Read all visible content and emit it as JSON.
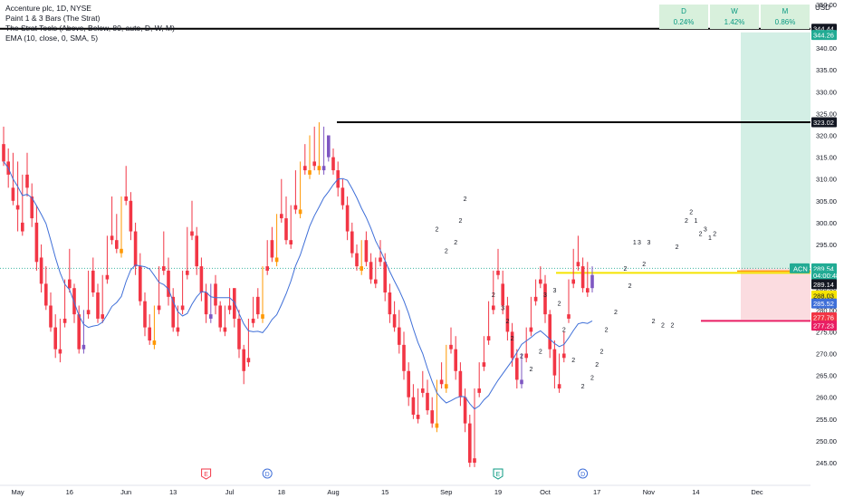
{
  "legend": {
    "title": "Accenture plc, 1D, NYSE",
    "indicators": [
      "Paint 1 & 3 Bars (The Strat)",
      "The Strat Tools (Above, Below, 80, auto, D, W, M)",
      "EMA (10, close, 0, SMA, 5)"
    ]
  },
  "performance": [
    {
      "label": "D",
      "value": "0.24%"
    },
    {
      "label": "W",
      "value": "1.42%"
    },
    {
      "label": "M",
      "value": "0.86%"
    }
  ],
  "currency": "USD",
  "colors": {
    "up": "#089981",
    "down": "#f23645",
    "inside": "#7e57c2",
    "outside": "#ff9800",
    "ema": "#3f6fd8",
    "level": "#000000",
    "yellow": "#f5e400",
    "magenta": "#e91e63",
    "target_zone": "#d3efe5",
    "stop_zone": "#fbdce0"
  },
  "chart_data": {
    "type": "candlestick",
    "symbol": "ACN",
    "timeframe": "1D",
    "ylim": [
      242,
      352
    ],
    "y_ticks": [
      245,
      250,
      255,
      260,
      265,
      270,
      275,
      280,
      285,
      290,
      295,
      300,
      305,
      310,
      315,
      320,
      325,
      330,
      335,
      340,
      345,
      350
    ],
    "x_ticks": [
      {
        "label": "May",
        "i": 3
      },
      {
        "label": "16",
        "i": 14
      },
      {
        "label": "Jun",
        "i": 26
      },
      {
        "label": "13",
        "i": 36
      },
      {
        "label": "Jul",
        "i": 48
      },
      {
        "label": "18",
        "i": 59
      },
      {
        "label": "Aug",
        "i": 70
      },
      {
        "label": "15",
        "i": 81
      },
      {
        "label": "Sep",
        "i": 94
      },
      {
        "label": "19",
        "i": 105
      },
      {
        "label": "Oct",
        "i": 115
      },
      {
        "label": "17",
        "i": 126
      },
      {
        "label": "Nov",
        "i": 137
      },
      {
        "label": "14",
        "i": 147
      },
      {
        "label": "Dec",
        "i": 160
      }
    ],
    "candles": [
      [
        318,
        322,
        314,
        313
      ],
      [
        314,
        317,
        311,
        308
      ],
      [
        308,
        316,
        305,
        304
      ],
      [
        304,
        314,
        303,
        298
      ],
      [
        300,
        311,
        298,
        297
      ],
      [
        311,
        316,
        308,
        306
      ],
      [
        306,
        309,
        301,
        299
      ],
      [
        300,
        304,
        291,
        289
      ],
      [
        292,
        295,
        286,
        284
      ],
      [
        286,
        290,
        281,
        280
      ],
      [
        281,
        284,
        276,
        275
      ],
      [
        276,
        279,
        271,
        269
      ],
      [
        271,
        278,
        270,
        268
      ],
      [
        278,
        287,
        277,
        276
      ],
      [
        287,
        294,
        285,
        284
      ],
      [
        285,
        286,
        279,
        277
      ],
      [
        279,
        281,
        271,
        270
      ],
      [
        272,
        280,
        271,
        270
      ],
      [
        280,
        289,
        279,
        278
      ],
      [
        289,
        292,
        284,
        283
      ],
      [
        284,
        286,
        278,
        277
      ],
      [
        279,
        288,
        278,
        277
      ],
      [
        288,
        297,
        287,
        286
      ],
      [
        297,
        306,
        296,
        295
      ],
      [
        296,
        302,
        294,
        293
      ],
      [
        294,
        306,
        293,
        292
      ],
      [
        306,
        313,
        305,
        304
      ],
      [
        305,
        307,
        298,
        296
      ],
      [
        298,
        300,
        290,
        288
      ],
      [
        290,
        293,
        282,
        281
      ],
      [
        282,
        284,
        276,
        274
      ],
      [
        276,
        279,
        273,
        272
      ],
      [
        273,
        281,
        272,
        271
      ],
      [
        281,
        290,
        280,
        279
      ],
      [
        290,
        298,
        289,
        288
      ],
      [
        289,
        292,
        283,
        281
      ],
      [
        283,
        285,
        276,
        275
      ],
      [
        276,
        281,
        275,
        274
      ],
      [
        281,
        289,
        280,
        279
      ],
      [
        289,
        299,
        288,
        287
      ],
      [
        298,
        305,
        297,
        296
      ],
      [
        297,
        299,
        290,
        288
      ],
      [
        290,
        292,
        284,
        282
      ],
      [
        284,
        286,
        279,
        277
      ],
      [
        279,
        286,
        278,
        277
      ],
      [
        286,
        288,
        281,
        279
      ],
      [
        281,
        282,
        276,
        275
      ],
      [
        276,
        281,
        275,
        274
      ],
      [
        281,
        285,
        280,
        279
      ],
      [
        285,
        283,
        278,
        276
      ],
      [
        278,
        280,
        271,
        269
      ],
      [
        271,
        272,
        266,
        263
      ],
      [
        269,
        278,
        268,
        267
      ],
      [
        278,
        283,
        277,
        276
      ],
      [
        283,
        285,
        279,
        278
      ],
      [
        279,
        290,
        278,
        277
      ],
      [
        290,
        296,
        289,
        288
      ],
      [
        296,
        299,
        292,
        291
      ],
      [
        292,
        302,
        291,
        290
      ],
      [
        302,
        310,
        301,
        300
      ],
      [
        301,
        306,
        296,
        295
      ],
      [
        296,
        304,
        295,
        294
      ],
      [
        304,
        312,
        303,
        302
      ],
      [
        303,
        314,
        302,
        301
      ],
      [
        313,
        318,
        312,
        311
      ],
      [
        312,
        320,
        311,
        310
      ],
      [
        314,
        322,
        313,
        312
      ],
      [
        313,
        323,
        312,
        311
      ],
      [
        313,
        322,
        312,
        311
      ],
      [
        320,
        318,
        315,
        314
      ],
      [
        315,
        317,
        312,
        311
      ],
      [
        312,
        314,
        308,
        306
      ],
      [
        308,
        310,
        304,
        303
      ],
      [
        304,
        306,
        298,
        296
      ],
      [
        298,
        300,
        293,
        292
      ],
      [
        293,
        295,
        290,
        289
      ],
      [
        290,
        296,
        289,
        288
      ],
      [
        296,
        298,
        291,
        290
      ],
      [
        291,
        293,
        287,
        286
      ],
      [
        287,
        292,
        286,
        285
      ],
      [
        292,
        296,
        291,
        290
      ],
      [
        291,
        293,
        284,
        282
      ],
      [
        284,
        286,
        279,
        277
      ],
      [
        279,
        282,
        276,
        275
      ],
      [
        276,
        280,
        272,
        270
      ],
      [
        272,
        275,
        266,
        264
      ],
      [
        266,
        268,
        260,
        258
      ],
      [
        260,
        263,
        256,
        255
      ],
      [
        256,
        262,
        255,
        254
      ],
      [
        262,
        266,
        261,
        260
      ],
      [
        261,
        264,
        257,
        256
      ],
      [
        257,
        260,
        254,
        253
      ],
      [
        254,
        264,
        253,
        252
      ],
      [
        264,
        268,
        263,
        262
      ],
      [
        263,
        272,
        262,
        261
      ],
      [
        272,
        276,
        271,
        270
      ],
      [
        271,
        274,
        266,
        264
      ],
      [
        266,
        268,
        260,
        258
      ],
      [
        260,
        262,
        254,
        252
      ],
      [
        254,
        256,
        245,
        244
      ],
      [
        246,
        262,
        245,
        244
      ],
      [
        262,
        268,
        261,
        260
      ],
      [
        268,
        274,
        267,
        266
      ],
      [
        274,
        282,
        273,
        272
      ],
      [
        281,
        289,
        280,
        279
      ],
      [
        289,
        294,
        288,
        287
      ],
      [
        286,
        289,
        281,
        279
      ],
      [
        281,
        283,
        275,
        273
      ],
      [
        275,
        277,
        269,
        267
      ],
      [
        269,
        271,
        264,
        262
      ],
      [
        264,
        270,
        263,
        262
      ],
      [
        270,
        276,
        269,
        268
      ],
      [
        276,
        283,
        275,
        274
      ],
      [
        283,
        287,
        282,
        281
      ],
      [
        287,
        290,
        286,
        285
      ],
      [
        286,
        288,
        279,
        277
      ],
      [
        279,
        280,
        271,
        269
      ],
      [
        271,
        273,
        265,
        262
      ],
      [
        263,
        270,
        262,
        261
      ],
      [
        270,
        275,
        269,
        268
      ],
      [
        279,
        287,
        278,
        277
      ],
      [
        287,
        294,
        286,
        285
      ],
      [
        291,
        297,
        290,
        289
      ],
      [
        290,
        292,
        285,
        284
      ],
      [
        285,
        291,
        284,
        283
      ],
      [
        288,
        290,
        285,
        284
      ]
    ],
    "levels": [
      {
        "name": "upper-target",
        "price": 344.44,
        "label": "344.44",
        "color": "#000000"
      },
      {
        "name": "mid-target",
        "price": 323.02,
        "label": "323.02",
        "color": "#000000"
      },
      {
        "name": "entry-line",
        "price": 288.5,
        "color": "#f5e400"
      },
      {
        "name": "stop-line",
        "price": 277.5,
        "color": "#e91e63"
      }
    ],
    "price_labels": [
      {
        "text": "344.44",
        "price": 344.44,
        "bg": "#131722",
        "fg": "#ffffff"
      },
      {
        "text": "344.26",
        "price": 343.0,
        "bg": "#22ab94",
        "fg": "#ffffff"
      },
      {
        "text": "323.02",
        "price": 323.02,
        "bg": "#131722",
        "fg": "#ffffff"
      },
      {
        "text": "289.54",
        "price": 289.54,
        "bg": "#22ab94",
        "fg": "#ffffff",
        "tag": "ACN"
      },
      {
        "text": "04:00:48",
        "price": 287.9,
        "bg": "#22ab94",
        "fg": "#ffffff"
      },
      {
        "text": "289.14",
        "price": 285.9,
        "bg": "#131722",
        "fg": "#ffffff"
      },
      {
        "text": "288.03",
        "price": 283.3,
        "bg": "#f5e400",
        "fg": "#131722"
      },
      {
        "text": "285.52",
        "price": 281.5,
        "bg": "#3f6fd8",
        "fg": "#ffffff"
      },
      {
        "text": "277.76",
        "price": 278.3,
        "bg": "#f23645",
        "fg": "#ffffff"
      },
      {
        "text": "277.23",
        "price": 276.4,
        "bg": "#e91e63",
        "fg": "#ffffff"
      }
    ],
    "strat_labels": [
      {
        "text": "2",
        "i": 92,
        "price": 298
      },
      {
        "text": "2",
        "i": 94,
        "price": 293
      },
      {
        "text": "2",
        "i": 96,
        "price": 295
      },
      {
        "text": "2",
        "i": 97,
        "price": 300
      },
      {
        "text": "2",
        "i": 98,
        "price": 305
      },
      {
        "text": "2",
        "i": 104,
        "price": 283
      },
      {
        "text": "3",
        "i": 106,
        "price": 280
      },
      {
        "text": "2",
        "i": 107,
        "price": 277
      },
      {
        "text": "2",
        "i": 108,
        "price": 273
      },
      {
        "text": "2",
        "i": 110,
        "price": 269
      },
      {
        "text": "2",
        "i": 112,
        "price": 266
      },
      {
        "text": "2",
        "i": 114,
        "price": 270
      },
      {
        "text": "3",
        "i": 115,
        "price": 283
      },
      {
        "text": "3",
        "i": 117,
        "price": 284
      },
      {
        "text": "2",
        "i": 118,
        "price": 281
      },
      {
        "text": "2",
        "i": 119,
        "price": 275
      },
      {
        "text": "2",
        "i": 121,
        "price": 268
      },
      {
        "text": "2",
        "i": 123,
        "price": 262
      },
      {
        "text": "2",
        "i": 125,
        "price": 264
      },
      {
        "text": "2",
        "i": 126,
        "price": 267
      },
      {
        "text": "2",
        "i": 127,
        "price": 270
      },
      {
        "text": "2",
        "i": 128,
        "price": 275
      },
      {
        "text": "2",
        "i": 130,
        "price": 279
      },
      {
        "text": "2",
        "i": 132,
        "price": 289
      },
      {
        "text": "2",
        "i": 133,
        "price": 285
      },
      {
        "text": "1",
        "i": 134,
        "price": 295
      },
      {
        "text": "3",
        "i": 135,
        "price": 295
      },
      {
        "text": "2",
        "i": 136,
        "price": 290
      },
      {
        "text": "3",
        "i": 137,
        "price": 295
      },
      {
        "text": "2",
        "i": 138,
        "price": 277
      },
      {
        "text": "2",
        "i": 140,
        "price": 276
      },
      {
        "text": "2",
        "i": 142,
        "price": 276
      },
      {
        "text": "2",
        "i": 143,
        "price": 294
      },
      {
        "text": "2",
        "i": 145,
        "price": 300
      },
      {
        "text": "2",
        "i": 146,
        "price": 302
      },
      {
        "text": "1",
        "i": 147,
        "price": 300
      },
      {
        "text": "2",
        "i": 148,
        "price": 297
      },
      {
        "text": "3",
        "i": 149,
        "price": 298
      },
      {
        "text": "1",
        "i": 150,
        "price": 296
      },
      {
        "text": "2",
        "i": 151,
        "price": 297
      }
    ],
    "event_markers": [
      {
        "text": "E",
        "i": 43,
        "color": "#f23645",
        "shape": "flag"
      },
      {
        "text": "D",
        "i": 56,
        "color": "#3f6fd8",
        "shape": "circle"
      },
      {
        "text": "E",
        "i": 105,
        "color": "#089981",
        "shape": "flag"
      },
      {
        "text": "D",
        "i": 123,
        "color": "#3f6fd8",
        "shape": "circle"
      }
    ]
  }
}
